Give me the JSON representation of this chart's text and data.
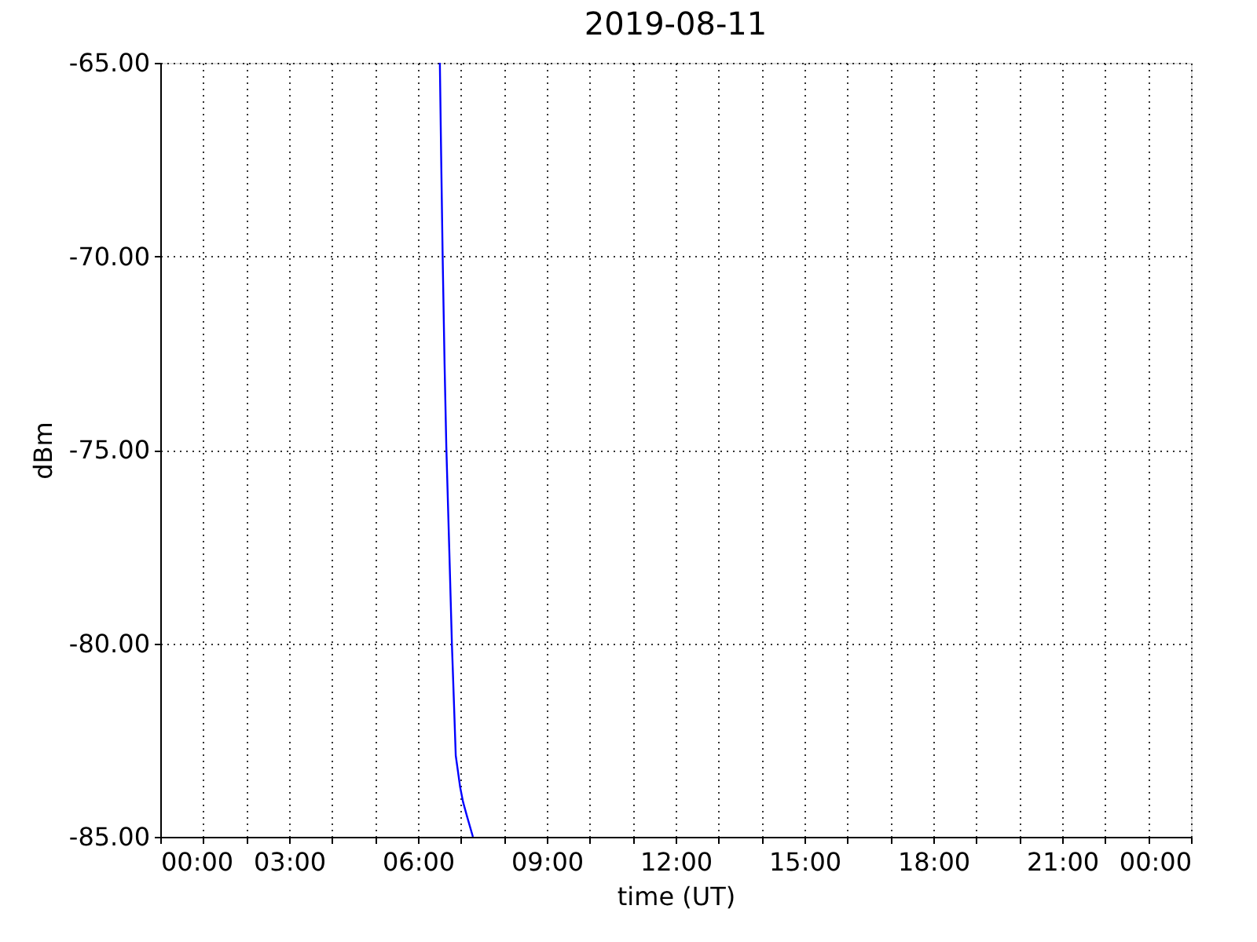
{
  "chart_data": {
    "type": "line",
    "title": "2019-08-11",
    "xlabel": "time (UT)",
    "ylabel": "dBm",
    "x": [
      6.51,
      6.54,
      6.575,
      6.62,
      6.66,
      6.73,
      6.79,
      6.84,
      6.88,
      6.93,
      6.98,
      7.05,
      7.15,
      7.28
    ],
    "series": [
      {
        "color": "#0000ff",
        "values": [
          -65,
          -67.4,
          -70,
          -72.8,
          -74.9,
          -77.6,
          -80,
          -81.6,
          -82.9,
          -83.3,
          -83.7,
          -84.1,
          -84.5,
          -85
        ]
      }
    ],
    "xlim": [
      0,
      24
    ],
    "xticks": [
      {
        "value": 0,
        "label": "00:00"
      },
      {
        "value": 1,
        "label": null
      },
      {
        "value": 2,
        "label": null
      },
      {
        "value": 3,
        "label": "03:00"
      },
      {
        "value": 4,
        "label": null
      },
      {
        "value": 5,
        "label": null
      },
      {
        "value": 6,
        "label": "06:00"
      },
      {
        "value": 7,
        "label": null
      },
      {
        "value": 8,
        "label": null
      },
      {
        "value": 9,
        "label": "09:00"
      },
      {
        "value": 10,
        "label": null
      },
      {
        "value": 11,
        "label": null
      },
      {
        "value": 12,
        "label": "12:00"
      },
      {
        "value": 13,
        "label": null
      },
      {
        "value": 14,
        "label": null
      },
      {
        "value": 15,
        "label": "15:00"
      },
      {
        "value": 16,
        "label": null
      },
      {
        "value": 17,
        "label": null
      },
      {
        "value": 18,
        "label": "18:00"
      },
      {
        "value": 19,
        "label": null
      },
      {
        "value": 20,
        "label": null
      },
      {
        "value": 21,
        "label": "21:00"
      },
      {
        "value": 22,
        "label": null
      },
      {
        "value": 23,
        "label": null
      },
      {
        "value": 24,
        "label": "00:00"
      }
    ],
    "ylim": [
      -85,
      -65
    ],
    "yticks": [
      {
        "value": -85,
        "label": "-85.00"
      },
      {
        "value": -80,
        "label": "-80.00"
      },
      {
        "value": -75,
        "label": "-75.00"
      },
      {
        "value": -70,
        "label": "-70.00"
      },
      {
        "value": -65,
        "label": "-65.00"
      }
    ],
    "grid": true,
    "line_style": "solid"
  }
}
